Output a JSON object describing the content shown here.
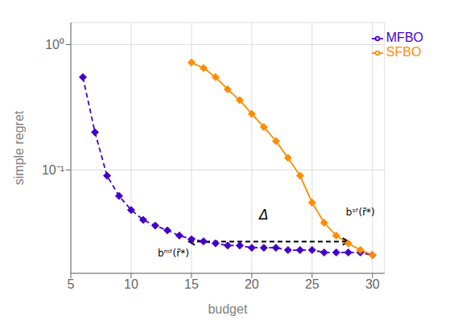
{
  "chart_data": {
    "type": "line",
    "log": "y",
    "grid": true,
    "legend": "upper right",
    "xlabel": "budget",
    "ylabel": "simple regret",
    "x": [
      6,
      7,
      8,
      9,
      10,
      11,
      12,
      13,
      14,
      15,
      16,
      17,
      18,
      19,
      20,
      21,
      22,
      23,
      24,
      25,
      26,
      27,
      28,
      29,
      30
    ],
    "series": [
      {
        "name": "MFBO",
        "color": "#4400cc",
        "marker": "diamond",
        "line_style": "dashed",
        "values": [
          0.55,
          0.2,
          0.09,
          0.062,
          0.048,
          0.04,
          0.036,
          0.033,
          0.03,
          0.028,
          0.027,
          0.026,
          0.025,
          0.025,
          0.024,
          0.024,
          0.024,
          0.023,
          0.023,
          0.023,
          0.022,
          0.022,
          0.022,
          0.022,
          0.021
        ]
      },
      {
        "name": "SFBO",
        "color": "#ff8c00",
        "marker": "diamond",
        "line_style": "solid",
        "values": [
          null,
          null,
          null,
          null,
          null,
          null,
          null,
          null,
          null,
          0.72,
          0.65,
          0.55,
          0.44,
          0.36,
          0.28,
          0.22,
          0.17,
          0.125,
          0.09,
          0.055,
          0.038,
          0.03,
          0.026,
          0.023,
          0.021
        ]
      }
    ],
    "xlim": [
      5,
      31
    ],
    "ylim": [
      0.015,
      1.5
    ],
    "xticks": [
      5,
      10,
      15,
      20,
      25,
      30
    ],
    "yticks": [
      {
        "value": 0.1,
        "label": "10⁻¹"
      },
      {
        "value": 1.0,
        "label": "10⁰"
      }
    ],
    "annotations": [
      {
        "type": "arrow",
        "x": [
          14.8,
          28.0
        ],
        "y": 0.026915348
      },
      {
        "text": "Δ",
        "x": 21.0,
        "y": 0.0380189396
      },
      {
        "text": "bᵐᶠ(r̃*)",
        "x": 13.5,
        "y": 0.0239883292
      },
      {
        "text": "bˢᶠ(r̃*)",
        "x": 27.8,
        "y": 0.0416869383
      }
    ]
  }
}
